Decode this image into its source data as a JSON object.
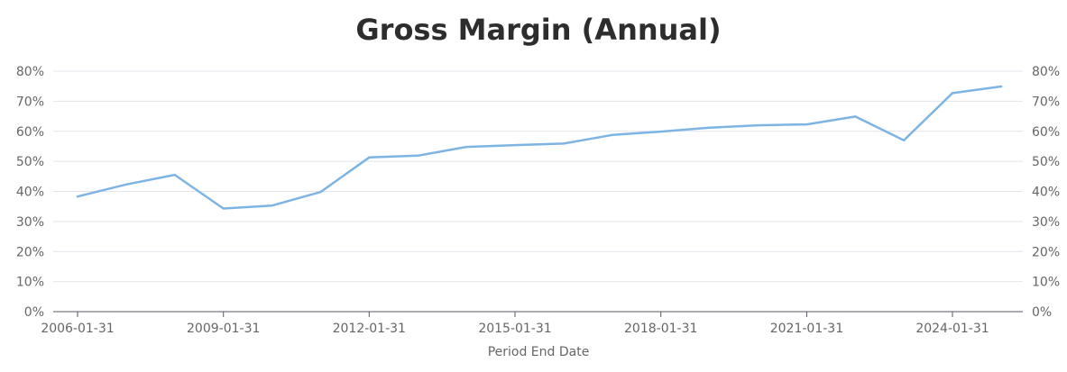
{
  "chart_data": {
    "type": "line",
    "title": "Gross Margin (Annual)",
    "xlabel": "Period End Date",
    "ylabel": "",
    "ylim": [
      0,
      80
    ],
    "y_ticks": [
      "0%",
      "10%",
      "20%",
      "30%",
      "40%",
      "50%",
      "60%",
      "70%",
      "80%"
    ],
    "y_tick_values": [
      0,
      10,
      20,
      30,
      40,
      50,
      60,
      70,
      80
    ],
    "x_ticks": [
      "2006-01-31",
      "2009-01-31",
      "2012-01-31",
      "2015-01-31",
      "2018-01-31",
      "2021-01-31",
      "2024-01-31"
    ],
    "grid": true,
    "legend": "none",
    "line_color": "#7eb4e3",
    "series": [
      {
        "x": [
          "2006-01-31",
          "2007-01-31",
          "2008-01-31",
          "2009-01-31",
          "2010-01-31",
          "2011-01-31",
          "2012-01-31",
          "2013-01-31",
          "2014-01-31",
          "2015-01-31",
          "2016-01-31",
          "2017-01-31",
          "2018-01-31",
          "2019-01-31",
          "2020-01-31",
          "2021-01-31",
          "2022-01-31",
          "2023-01-31",
          "2024-01-31",
          "2025-01-31"
        ],
        "values": [
          38.3,
          42.3,
          45.5,
          34.3,
          35.3,
          39.8,
          51.3,
          51.9,
          54.8,
          55.4,
          55.9,
          58.8,
          59.9,
          61.2,
          62.0,
          62.3,
          64.9,
          57.0,
          72.7,
          74.9
        ]
      }
    ]
  }
}
